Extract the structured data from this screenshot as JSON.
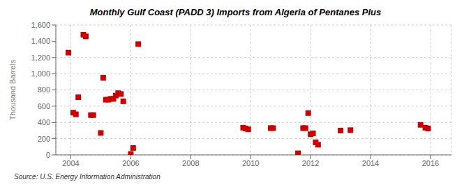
{
  "chart_data": {
    "type": "scatter",
    "title": "Monthly Gulf Coast (PADD 3) Imports from Algeria of Pentanes Plus",
    "ylabel": "Thousand Barrels",
    "annotations": [
      "Source: U.S. Energy Information Administration"
    ],
    "color": "#cc0000",
    "marker": "square",
    "grid": true,
    "xlim": [
      2003.5,
      2016.7
    ],
    "ylim": [
      0,
      1600
    ],
    "xticks": [
      2004,
      2006,
      2008,
      2010,
      2012,
      2014,
      2016
    ],
    "yticks": [
      0,
      200,
      400,
      600,
      800,
      {
        "value": 1000,
        "label": "1,000"
      },
      {
        "value": 1200,
        "label": "1,200"
      },
      {
        "value": 1400,
        "label": "1,400"
      },
      {
        "value": 1600,
        "label": "1,600"
      }
    ],
    "x": [
      2003.92,
      2004.08,
      2004.17,
      2004.25,
      2004.42,
      2004.5,
      2004.67,
      2004.75,
      2005.0,
      2005.08,
      2005.17,
      2005.25,
      2005.33,
      2005.42,
      2005.5,
      2005.58,
      2005.67,
      2005.75,
      2006.0,
      2006.08,
      2006.25,
      2009.75,
      2009.83,
      2009.92,
      2010.67,
      2010.75,
      2011.58,
      2011.75,
      2011.83,
      2011.92,
      2012.0,
      2012.08,
      2012.17,
      2012.25,
      2013.0,
      2013.33,
      2015.67,
      2015.83,
      2015.92
    ],
    "values": [
      1260,
      520,
      500,
      710,
      1480,
      1460,
      490,
      490,
      270,
      950,
      680,
      680,
      690,
      690,
      730,
      760,
      750,
      660,
      10,
      85,
      1365,
      335,
      325,
      315,
      330,
      330,
      20,
      330,
      330,
      515,
      255,
      265,
      155,
      125,
      300,
      305,
      370,
      335,
      325
    ]
  }
}
